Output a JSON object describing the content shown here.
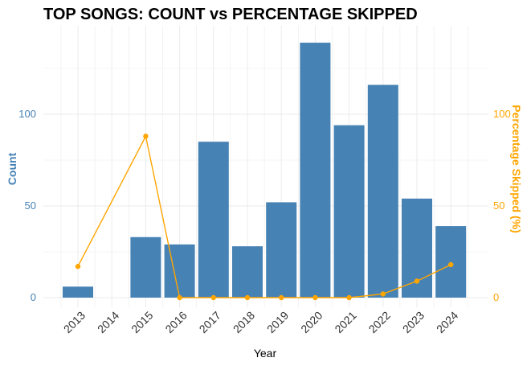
{
  "chart_data": {
    "type": "bar",
    "title": "TOP SONGS: COUNT vs PERCENTAGE SKIPPED",
    "xlabel": "Year",
    "ylabel": "Count",
    "ylabel_right": "Percentage Skipped (%)",
    "categories": [
      "2013",
      "2014",
      "2015",
      "2016",
      "2017",
      "2018",
      "2019",
      "2020",
      "2021",
      "2022",
      "2023",
      "2024"
    ],
    "series": [
      {
        "values": [
          6,
          0,
          33,
          29,
          85,
          28,
          52,
          139,
          94,
          116,
          54,
          39
        ],
        "color": "#4682B4",
        "type": "bar",
        "axis": "left"
      },
      {
        "values": [
          17,
          null,
          88,
          0,
          0,
          0,
          0,
          0,
          0,
          2,
          9,
          18
        ],
        "color": "#FFA500",
        "type": "line",
        "axis": "right"
      }
    ],
    "ylim": [
      0,
      143
    ],
    "ylim_right": [
      0,
      143
    ],
    "yticks": [
      0,
      50,
      100
    ],
    "yticks_right": [
      0,
      50,
      100
    ],
    "grid": true,
    "colors": {
      "bar": "#4682B4",
      "line": "#FFA500",
      "grid": "#EBEBEB"
    }
  }
}
